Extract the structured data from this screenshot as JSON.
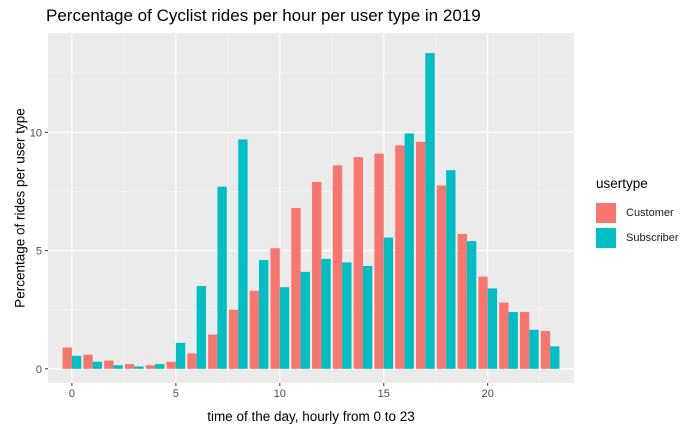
{
  "chart_data": {
    "type": "bar",
    "title": "Percentage of Cyclist rides per hour per user type in 2019",
    "xlabel": "time of the day, hourly from 0 to 23",
    "ylabel": "Percentage of rides per user type",
    "xlim": [
      -1.15,
      24.15
    ],
    "ylim": [
      -0.6,
      14.2
    ],
    "x_ticks": [
      0,
      5,
      10,
      15,
      20
    ],
    "y_ticks": [
      0,
      5,
      10
    ],
    "x_tick_labels": [
      "0",
      "5",
      "10",
      "15",
      "20"
    ],
    "y_tick_labels": [
      "0",
      "5",
      "10"
    ],
    "grid": true,
    "legend": {
      "title": "usertype",
      "position": "right"
    },
    "hours": [
      0,
      1,
      2,
      3,
      4,
      5,
      6,
      7,
      8,
      9,
      10,
      11,
      12,
      13,
      14,
      15,
      16,
      17,
      18,
      19,
      20,
      21,
      22,
      23
    ],
    "series": [
      {
        "name": "Customer",
        "color": "#F8766D",
        "values": [
          0.9,
          0.6,
          0.35,
          0.2,
          0.15,
          0.3,
          0.65,
          1.45,
          2.5,
          3.3,
          5.1,
          6.8,
          7.9,
          8.6,
          8.95,
          9.1,
          9.45,
          9.6,
          7.75,
          5.7,
          3.9,
          2.8,
          2.4,
          1.6
        ]
      },
      {
        "name": "Subscriber",
        "color": "#00BFC4",
        "values": [
          0.55,
          0.3,
          0.15,
          0.1,
          0.2,
          1.1,
          3.5,
          7.7,
          9.7,
          4.6,
          3.45,
          4.1,
          4.65,
          4.5,
          4.35,
          5.55,
          9.95,
          13.35,
          8.4,
          5.4,
          3.4,
          2.4,
          1.65,
          0.95
        ]
      }
    ]
  }
}
